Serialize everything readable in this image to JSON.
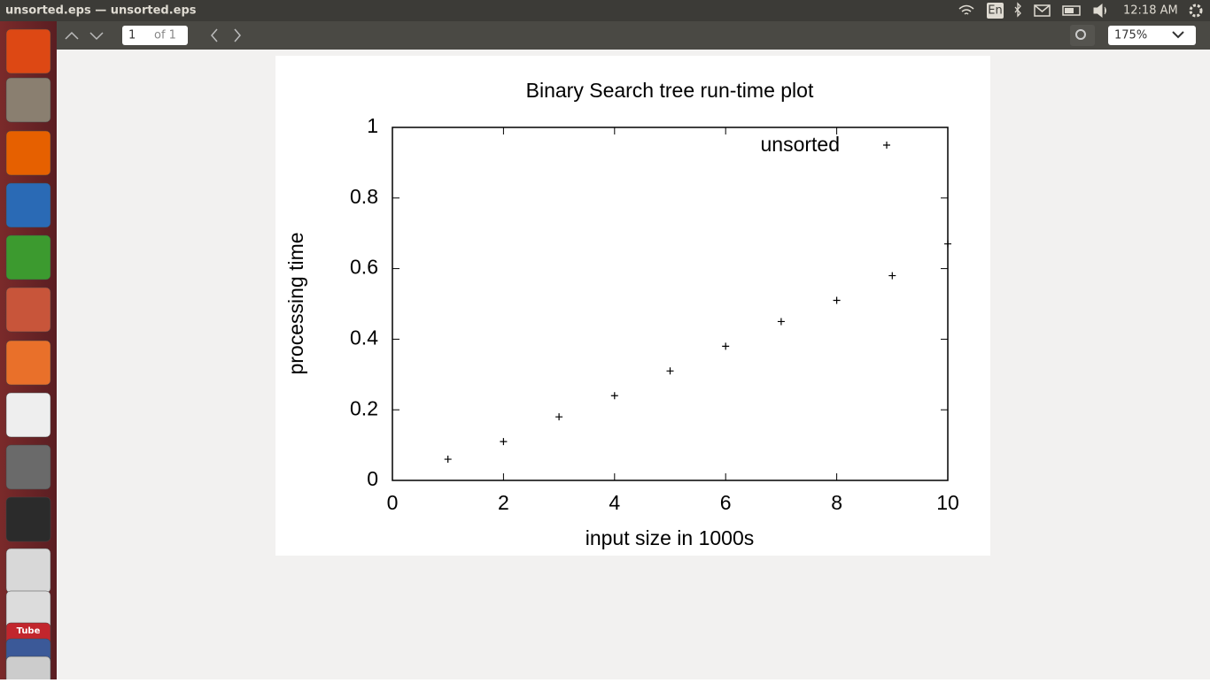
{
  "window": {
    "title": "unsorted.eps — unsorted.eps"
  },
  "panel": {
    "keyboard": "En",
    "time": "12:18 AM"
  },
  "toolbar": {
    "page": "1",
    "page_count": "of 1",
    "zoom": "175%"
  },
  "launcher": {
    "youtube_label": "Tube"
  },
  "chart_data": {
    "type": "scatter",
    "title": "Binary Search tree run-time plot",
    "x_label": "input size in 1000s",
    "y_label": "processing time",
    "x": [
      1,
      2,
      3,
      4,
      5,
      6,
      7,
      8,
      9,
      10
    ],
    "series": [
      {
        "name": "unsorted",
        "color": "#000000",
        "values": [
          0.06,
          0.11,
          0.18,
          0.24,
          0.31,
          0.38,
          0.45,
          0.51,
          0.58,
          0.67
        ]
      }
    ],
    "xlim": [
      0,
      10
    ],
    "xticks": [
      0,
      2,
      4,
      6,
      8,
      10
    ],
    "ylim": [
      0,
      1
    ],
    "yticks": [
      0,
      0.2,
      0.4,
      0.6,
      0.8,
      1
    ],
    "legend": "top-right"
  }
}
